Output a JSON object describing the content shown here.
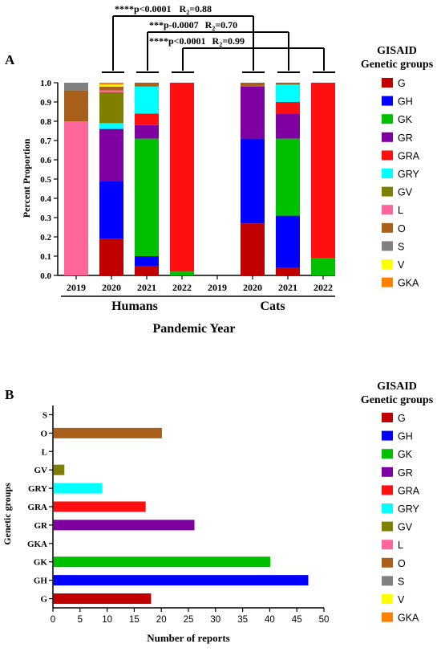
{
  "colors": {
    "G": "#C00000",
    "GH": "#0000FF",
    "GK": "#00C000",
    "GR": "#7F00A0",
    "GRA": "#FF1010",
    "GRY": "#00FFFF",
    "GV": "#808000",
    "L": "#FF6699",
    "O": "#A8601A",
    "S": "#808080",
    "V": "#FFFF00",
    "GKA": "#FF8000"
  },
  "legend": {
    "title_line1": "GISAID",
    "title_line2": "Genetic groups",
    "items": [
      "G",
      "GH",
      "GK",
      "GR",
      "GRA",
      "GRY",
      "GV",
      "L",
      "O",
      "S",
      "V",
      "GKA"
    ]
  },
  "panelA": {
    "label": "A",
    "ylabel": "Percent Proportion",
    "xlabel": "Pandemic Year",
    "group_humans": "Humans",
    "group_cats": "Cats",
    "comparisons": [
      {
        "stars": "****",
        "p": "p<0.0001",
        "r": "R",
        "sub": "2",
        "val": "=0.88"
      },
      {
        "stars": "***",
        "p": "p-0.0007",
        "r": "R",
        "sub": "2",
        "val": "=0.70"
      },
      {
        "stars": "****",
        "p": "p<0.0001",
        "r": "R",
        "sub": "2",
        "val": "=0.99"
      }
    ]
  },
  "panelB": {
    "label": "B",
    "ylabel": "Genetic groups",
    "xlabel": "Number of reports"
  },
  "chart_data": [
    {
      "type": "bar",
      "stacked": true,
      "categories": [
        "2019",
        "2020",
        "2021",
        "2022",
        "2019",
        "2020",
        "2021",
        "2022"
      ],
      "groups": [
        "Humans",
        "Humans",
        "Humans",
        "Humans",
        "Cats",
        "Cats",
        "Cats",
        "Cats"
      ],
      "ylim": [
        0,
        1.0
      ],
      "yticks": [
        "0.0",
        "0.1",
        "0.2",
        "0.3",
        "0.4",
        "0.5",
        "0.6",
        "0.7",
        "0.8",
        "0.9",
        "1.0"
      ],
      "series": [
        {
          "name": "G",
          "values": [
            0.0,
            0.19,
            0.05,
            0.0,
            0.0,
            0.27,
            0.04,
            0.0
          ]
        },
        {
          "name": "GH",
          "values": [
            0.0,
            0.3,
            0.05,
            0.0,
            0.0,
            0.44,
            0.27,
            0.0
          ]
        },
        {
          "name": "GK",
          "values": [
            0.0,
            0.0,
            0.61,
            0.02,
            0.0,
            0.0,
            0.4,
            0.09
          ]
        },
        {
          "name": "GR",
          "values": [
            0.0,
            0.27,
            0.07,
            0.0,
            0.0,
            0.27,
            0.13,
            0.0
          ]
        },
        {
          "name": "GRA",
          "values": [
            0.0,
            0.0,
            0.06,
            0.98,
            0.0,
            0.0,
            0.06,
            0.91
          ]
        },
        {
          "name": "GRY",
          "values": [
            0.0,
            0.03,
            0.14,
            0.0,
            0.0,
            0.0,
            0.09,
            0.0
          ]
        },
        {
          "name": "GV",
          "values": [
            0.0,
            0.16,
            0.0,
            0.0,
            0.0,
            0.0,
            0.0,
            0.0
          ]
        },
        {
          "name": "L",
          "values": [
            0.8,
            0.01,
            0.0,
            0.0,
            0.0,
            0.0,
            0.0,
            0.0
          ]
        },
        {
          "name": "O",
          "values": [
            0.16,
            0.02,
            0.02,
            0.0,
            0.0,
            0.02,
            0.01,
            0.0
          ]
        },
        {
          "name": "S",
          "values": [
            0.04,
            0.0,
            0.0,
            0.0,
            0.0,
            0.0,
            0.0,
            0.0
          ]
        },
        {
          "name": "V",
          "values": [
            0.0,
            0.01,
            0.0,
            0.0,
            0.0,
            0.0,
            0.0,
            0.0
          ]
        },
        {
          "name": "GKA",
          "values": [
            0.0,
            0.01,
            0.0,
            0.0,
            0.0,
            0.0,
            0.0,
            0.0
          ]
        }
      ]
    },
    {
      "type": "bar",
      "orientation": "horizontal",
      "categories": [
        "S",
        "O",
        "L",
        "GV",
        "GRY",
        "GRA",
        "GR",
        "GKA",
        "GK",
        "GH",
        "G"
      ],
      "values": [
        0,
        20,
        0,
        2,
        9,
        17,
        26,
        0,
        40,
        47,
        18
      ],
      "xlim": [
        0,
        50
      ],
      "xticks": [
        "0",
        "5",
        "10",
        "15",
        "20",
        "25",
        "30",
        "35",
        "40",
        "45",
        "50"
      ]
    }
  ]
}
